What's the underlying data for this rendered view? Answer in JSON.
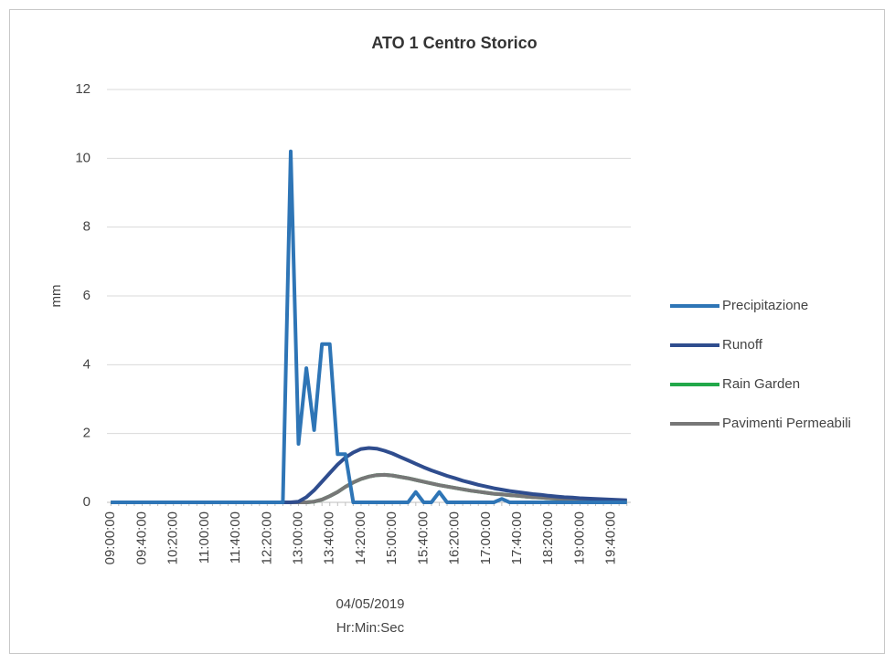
{
  "chart_data": {
    "type": "line",
    "title": "ATO 1 Centro Storico",
    "ylabel": "mm",
    "xlabel": [
      "04/05/2019",
      "Hr:Min:Sec"
    ],
    "categories": [
      "09:00:00",
      null,
      null,
      null,
      "09:40:00",
      null,
      null,
      null,
      "10:20:00",
      null,
      null,
      null,
      "11:00:00",
      null,
      null,
      null,
      "11:40:00",
      null,
      null,
      null,
      "12:20:00",
      null,
      null,
      null,
      "13:00:00",
      null,
      null,
      null,
      "13:40:00",
      null,
      null,
      null,
      "14:20:00",
      null,
      null,
      null,
      "15:00:00",
      null,
      null,
      null,
      "15:40:00",
      null,
      null,
      null,
      "16:20:00",
      null,
      null,
      null,
      "17:00:00",
      null,
      null,
      null,
      "17:40:00",
      null,
      null,
      null,
      "18:20:00",
      null,
      null,
      null,
      "19:00:00",
      null,
      null,
      null,
      "19:40:00",
      null,
      null
    ],
    "series": [
      {
        "name": "Precipitazione",
        "color": "#2e75b6",
        "values": [
          0,
          0,
          0,
          0,
          0,
          0,
          0,
          0,
          0,
          0,
          0,
          0,
          0,
          0,
          0,
          0,
          0,
          0,
          0,
          0,
          0,
          0,
          0,
          10.2,
          1.7,
          3.9,
          2.1,
          4.6,
          4.6,
          1.4,
          1.4,
          0,
          0,
          0,
          0,
          0,
          0,
          0,
          0,
          0.3,
          0,
          0,
          0.3,
          0,
          0,
          0,
          0,
          0,
          0,
          0,
          0.1,
          0,
          0,
          0,
          0,
          0,
          0,
          0,
          0,
          0,
          0,
          0,
          0,
          0,
          0,
          0,
          0
        ]
      },
      {
        "name": "Runoff",
        "color": "#2f4d8e",
        "values": [
          0,
          0,
          0,
          0,
          0,
          0,
          0,
          0,
          0,
          0,
          0,
          0,
          0,
          0,
          0,
          0,
          0,
          0,
          0,
          0,
          0,
          0,
          0,
          0,
          0.02,
          0.15,
          0.35,
          0.6,
          0.85,
          1.1,
          1.3,
          1.45,
          1.55,
          1.58,
          1.56,
          1.5,
          1.42,
          1.32,
          1.22,
          1.12,
          1.02,
          0.93,
          0.85,
          0.77,
          0.7,
          0.63,
          0.57,
          0.51,
          0.46,
          0.41,
          0.37,
          0.33,
          0.3,
          0.27,
          0.24,
          0.22,
          0.19,
          0.17,
          0.15,
          0.14,
          0.12,
          0.11,
          0.1,
          0.09,
          0.08,
          0.07,
          0.06
        ]
      },
      {
        "name": "Rain Garden",
        "color": "#22a84a",
        "values": [
          0,
          0,
          0,
          0,
          0,
          0,
          0,
          0,
          0,
          0,
          0,
          0,
          0,
          0,
          0,
          0,
          0,
          0,
          0,
          0,
          0,
          0,
          0,
          0,
          0,
          0,
          0.02,
          0.08,
          0.18,
          0.3,
          0.45,
          0.58,
          0.68,
          0.75,
          0.79,
          0.8,
          0.78,
          0.74,
          0.7,
          0.65,
          0.6,
          0.55,
          0.5,
          0.46,
          0.42,
          0.38,
          0.34,
          0.31,
          0.28,
          0.25,
          0.23,
          0.21,
          0.19,
          0.17,
          0.15,
          0.14,
          0.12,
          0.11,
          0.1,
          0.09,
          0.08,
          0.07,
          0.07,
          0.06,
          0.05,
          0.05,
          0.04
        ]
      },
      {
        "name": "Pavimenti Permeabili",
        "color": "#777777",
        "values": [
          0,
          0,
          0,
          0,
          0,
          0,
          0,
          0,
          0,
          0,
          0,
          0,
          0,
          0,
          0,
          0,
          0,
          0,
          0,
          0,
          0,
          0,
          0,
          0,
          0,
          0,
          0.02,
          0.08,
          0.18,
          0.3,
          0.45,
          0.58,
          0.68,
          0.75,
          0.79,
          0.8,
          0.78,
          0.74,
          0.7,
          0.65,
          0.6,
          0.55,
          0.5,
          0.46,
          0.42,
          0.38,
          0.34,
          0.31,
          0.28,
          0.25,
          0.23,
          0.21,
          0.19,
          0.17,
          0.15,
          0.14,
          0.12,
          0.11,
          0.1,
          0.09,
          0.08,
          0.07,
          0.07,
          0.06,
          0.05,
          0.05,
          0.04
        ]
      }
    ],
    "ylim": [
      0,
      12
    ],
    "yticks": [
      0,
      2,
      4,
      6,
      8,
      10,
      12
    ],
    "grid": true,
    "legend": "right"
  }
}
